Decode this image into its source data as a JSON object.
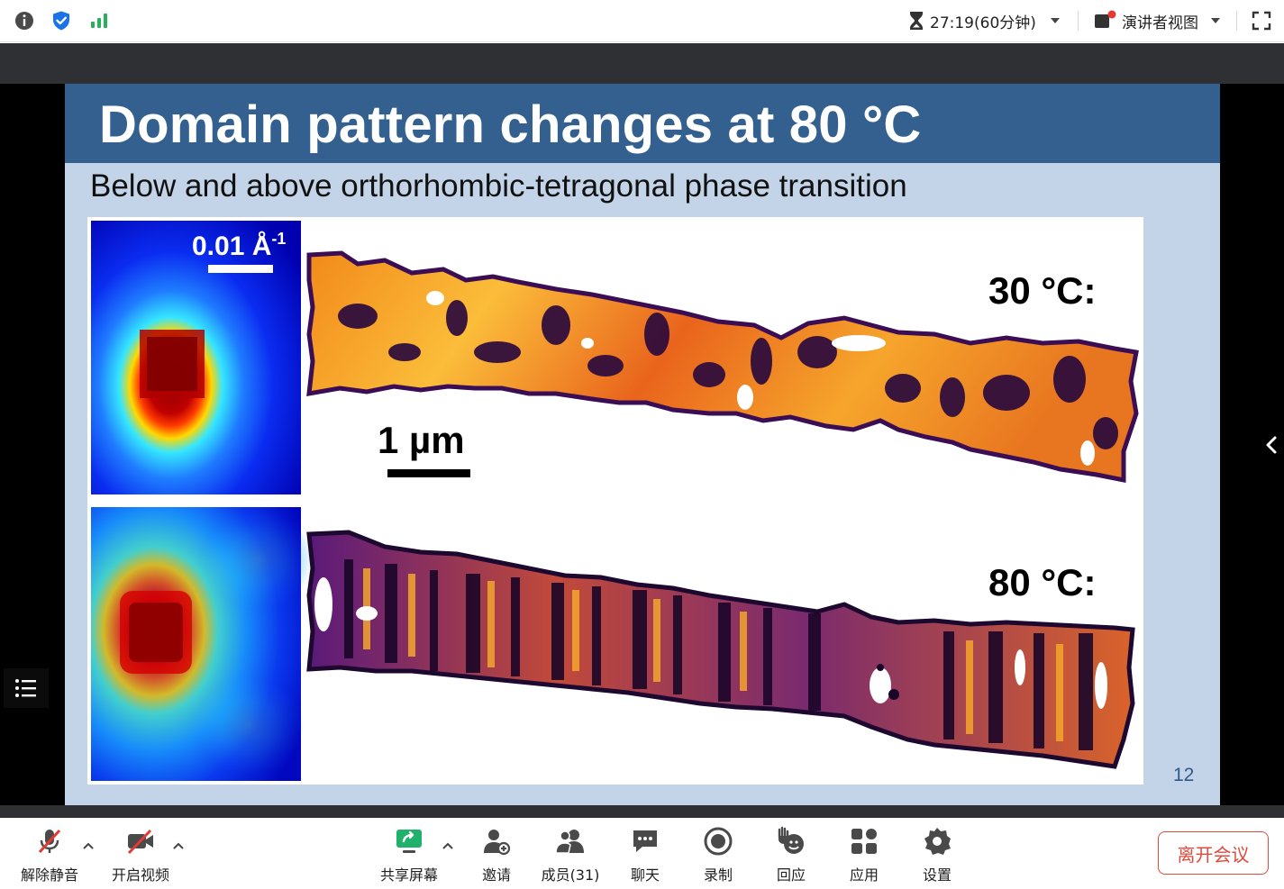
{
  "topbar": {
    "info_icon": "info-icon",
    "security_icon": "shield-check-icon",
    "signal_icon": "signal-bars-icon",
    "timer_text": "27:19(60分钟)",
    "view_label": "演讲者视图",
    "fullscreen_icon": "fullscreen-icon"
  },
  "slide": {
    "title": "Domain pattern changes at 80 °C",
    "subtitle": "Below and above orthorhombic-tetragonal phase transition",
    "page_number": "12",
    "figure": {
      "scale_top": "0.01 Å",
      "scale_top_sup": "-1",
      "scale_bar_label": "1 µm",
      "label_30": "30 °C:",
      "label_80": "80 °C:"
    }
  },
  "toolbar": {
    "unmute": "解除静音",
    "start_video": "开启视频",
    "share_screen": "共享屏幕",
    "invite": "邀请",
    "members": "成员(31)",
    "chat": "聊天",
    "record": "录制",
    "reactions": "回应",
    "apps": "应用",
    "settings": "设置",
    "leave": "离开会议"
  },
  "colors": {
    "slide_header": "#34608f",
    "slide_bg": "#c3d3e8",
    "accent_blue": "#1a73e8",
    "signal_green": "#27b15a",
    "leave_red": "#e04a3c"
  }
}
